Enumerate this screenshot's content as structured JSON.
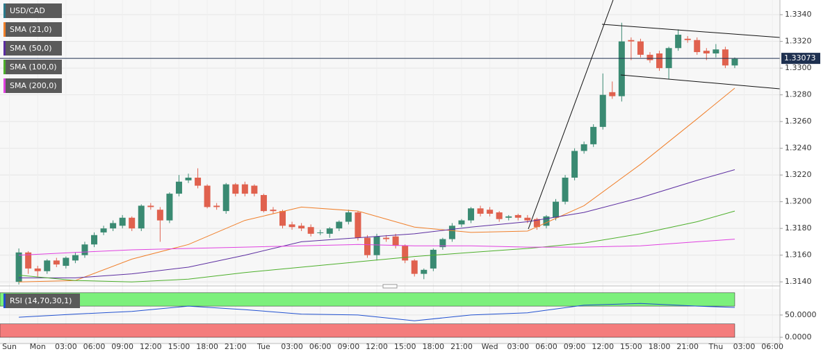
{
  "chart_data": [
    {
      "type": "candlestick",
      "symbol": "USD/CAD",
      "x": [
        -2,
        -1,
        0,
        1,
        2,
        3,
        4,
        5,
        6,
        7,
        8,
        9,
        10,
        11,
        12,
        13,
        14,
        15,
        16,
        17,
        18,
        19,
        20,
        21,
        22,
        23,
        24,
        25,
        26,
        27,
        28,
        29,
        30,
        31,
        32,
        33,
        34,
        35,
        36,
        37,
        38,
        39,
        40,
        41,
        42,
        43,
        44,
        45,
        46,
        47,
        48,
        49,
        50,
        51,
        52,
        53,
        54,
        55,
        56,
        57,
        58,
        59,
        60,
        61,
        62,
        63,
        64,
        65,
        66,
        67,
        68,
        69,
        70,
        71,
        72,
        73,
        74
      ],
      "open": [
        1.314,
        1.3162,
        1.315,
        1.3148,
        1.3156,
        1.3152,
        1.3156,
        1.316,
        1.3168,
        1.3177,
        1.318,
        1.3182,
        1.3188,
        1.318,
        1.3197,
        1.3194,
        1.3186,
        1.3206,
        1.3216,
        1.3218,
        1.3212,
        1.3197,
        1.3193,
        1.3213,
        1.3213,
        1.3212,
        1.3205,
        1.3194,
        1.3193,
        1.3183,
        1.3182,
        1.3181,
        1.3177,
        1.3176,
        1.318,
        1.3185,
        1.3192,
        1.3173,
        1.316,
        1.3173,
        1.3174,
        1.3167,
        1.3156,
        1.3146,
        1.315,
        1.3166,
        1.3172,
        1.3183,
        1.3186,
        1.3195,
        1.3194,
        1.3192,
        1.3188,
        1.319,
        1.3188,
        1.3187,
        1.3182,
        1.3188,
        1.32,
        1.3218,
        1.3238,
        1.3243,
        1.3256,
        1.3282,
        1.3279,
        1.3321,
        1.332,
        1.331,
        1.3311,
        1.33,
        1.3315,
        1.3322,
        1.3321,
        1.3313,
        1.3311,
        1.3314,
        1.3302
      ],
      "high": [
        1.3165,
        1.3163,
        1.3152,
        1.3157,
        1.3158,
        1.3159,
        1.3162,
        1.317,
        1.3177,
        1.3182,
        1.3186,
        1.319,
        1.3189,
        1.3198,
        1.3199,
        1.3196,
        1.3207,
        1.322,
        1.3221,
        1.3225,
        1.3213,
        1.3199,
        1.3214,
        1.3214,
        1.3215,
        1.3213,
        1.3206,
        1.3196,
        1.3194,
        1.3185,
        1.3184,
        1.3183,
        1.3179,
        1.3181,
        1.3186,
        1.3194,
        1.3193,
        1.3175,
        1.3176,
        1.3175,
        1.3176,
        1.3168,
        1.3157,
        1.315,
        1.3165,
        1.3173,
        1.3184,
        1.3187,
        1.3196,
        1.3197,
        1.3196,
        1.3193,
        1.319,
        1.3191,
        1.319,
        1.3188,
        1.319,
        1.3202,
        1.322,
        1.324,
        1.3245,
        1.3258,
        1.3296,
        1.329,
        1.3334,
        1.3323,
        1.3322,
        1.3312,
        1.3313,
        1.3316,
        1.3329,
        1.3324,
        1.3323,
        1.3315,
        1.3318,
        1.3316,
        1.3308
      ],
      "low": [
        1.3138,
        1.3146,
        1.3144,
        1.3146,
        1.3151,
        1.315,
        1.3154,
        1.3158,
        1.3166,
        1.3175,
        1.3178,
        1.318,
        1.3178,
        1.3178,
        1.3194,
        1.317,
        1.3184,
        1.3204,
        1.3214,
        1.321,
        1.3195,
        1.3194,
        1.3191,
        1.3204,
        1.3204,
        1.3204,
        1.3192,
        1.3191,
        1.318,
        1.3179,
        1.3178,
        1.3174,
        1.3175,
        1.3173,
        1.3178,
        1.3183,
        1.3171,
        1.3158,
        1.3156,
        1.317,
        1.3165,
        1.3154,
        1.3144,
        1.3142,
        1.3148,
        1.3164,
        1.317,
        1.3181,
        1.3184,
        1.3189,
        1.3189,
        1.3185,
        1.3186,
        1.3186,
        1.3184,
        1.3179,
        1.318,
        1.3186,
        1.3198,
        1.3216,
        1.3236,
        1.3241,
        1.3254,
        1.3277,
        1.3275,
        1.3306,
        1.3308,
        1.3304,
        1.3298,
        1.3292,
        1.3313,
        1.3319,
        1.331,
        1.3306,
        1.3308,
        1.33,
        1.33
      ],
      "close": [
        1.3162,
        1.315,
        1.3148,
        1.3156,
        1.3153,
        1.3158,
        1.316,
        1.3168,
        1.3175,
        1.318,
        1.3184,
        1.3188,
        1.318,
        1.3197,
        1.3196,
        1.3186,
        1.3206,
        1.3215,
        1.3218,
        1.3212,
        1.3196,
        1.3196,
        1.3213,
        1.3206,
        1.3206,
        1.3206,
        1.3193,
        1.3193,
        1.3182,
        1.3181,
        1.318,
        1.3176,
        1.3177,
        1.318,
        1.3185,
        1.3192,
        1.3173,
        1.316,
        1.3174,
        1.3172,
        1.3167,
        1.3156,
        1.3146,
        1.3149,
        1.3164,
        1.3172,
        1.3182,
        1.3186,
        1.3195,
        1.3191,
        1.3191,
        1.3187,
        1.3189,
        1.3188,
        1.3186,
        1.3181,
        1.3189,
        1.32,
        1.3218,
        1.3238,
        1.3243,
        1.3256,
        1.328,
        1.3279,
        1.332,
        1.332,
        1.331,
        1.3306,
        1.33,
        1.3315,
        1.3325,
        1.3321,
        1.3312,
        1.3311,
        1.3314,
        1.3302,
        1.3307
      ],
      "up_color": "#3a8a72",
      "down_color": "#e0614e",
      "series": [
        {
          "name": "SMA (21,0)",
          "color": "#f07f2a",
          "x": [
            -2,
            4,
            10,
            16,
            22,
            28,
            34,
            40,
            46,
            52,
            58,
            64,
            70,
            74
          ],
          "values": [
            1.314,
            1.3141,
            1.3157,
            1.3168,
            1.3186,
            1.3196,
            1.3193,
            1.3181,
            1.3177,
            1.3178,
            1.3197,
            1.3228,
            1.3262,
            1.3285
          ]
        },
        {
          "name": "SMA (50,0)",
          "color": "#5b2ca0",
          "x": [
            -2,
            4,
            10,
            16,
            22,
            28,
            34,
            40,
            46,
            52,
            58,
            64,
            70,
            74
          ],
          "values": [
            1.3143,
            1.3143,
            1.3146,
            1.3151,
            1.316,
            1.317,
            1.3173,
            1.3176,
            1.3181,
            1.3185,
            1.3192,
            1.3203,
            1.3216,
            1.3224
          ]
        },
        {
          "name": "SMA (100,0)",
          "color": "#4caf2a",
          "x": [
            -2,
            4,
            10,
            16,
            22,
            28,
            34,
            40,
            46,
            52,
            58,
            64,
            70,
            74
          ],
          "values": [
            1.3145,
            1.3141,
            1.314,
            1.3142,
            1.3147,
            1.3151,
            1.3155,
            1.3159,
            1.3162,
            1.3165,
            1.3169,
            1.3176,
            1.3185,
            1.3193
          ]
        },
        {
          "name": "SMA (200,0)",
          "color": "#e040e0",
          "x": [
            -2,
            4,
            10,
            16,
            22,
            28,
            34,
            40,
            46,
            52,
            58,
            64,
            70,
            74
          ],
          "values": [
            1.316,
            1.3162,
            1.3164,
            1.3165,
            1.3166,
            1.3167,
            1.3168,
            1.3167,
            1.3167,
            1.3166,
            1.3166,
            1.3167,
            1.317,
            1.3172
          ]
        }
      ],
      "last_price": 1.33073,
      "xlim": [
        -4,
        78.8
      ],
      "ylim": [
        1.3138,
        1.3351
      ],
      "yticks": [
        {
          "value": 1.314,
          "label": "1.3140"
        },
        {
          "value": 1.316,
          "label": "1.3160"
        },
        {
          "value": 1.318,
          "label": "1.3180"
        },
        {
          "value": 1.32,
          "label": "1.3200"
        },
        {
          "value": 1.322,
          "label": "1.3220"
        },
        {
          "value": 1.324,
          "label": "1.3240"
        },
        {
          "value": 1.326,
          "label": "1.3260"
        },
        {
          "value": 1.328,
          "label": "1.3280"
        },
        {
          "value": 1.33,
          "label": "1.3300"
        },
        {
          "value": 1.332,
          "label": "1.3320"
        },
        {
          "value": 1.334,
          "label": "1.3340"
        }
      ],
      "xticks": [
        {
          "value": -3,
          "label": "Sun"
        },
        {
          "value": 0,
          "label": "Mon"
        },
        {
          "value": 3,
          "label": "03:00"
        },
        {
          "value": 6,
          "label": "06:00"
        },
        {
          "value": 9,
          "label": "09:00"
        },
        {
          "value": 12,
          "label": "12:00"
        },
        {
          "value": 15,
          "label": "15:00"
        },
        {
          "value": 18,
          "label": "18:00"
        },
        {
          "value": 21,
          "label": "21:00"
        },
        {
          "value": 24,
          "label": "Tue"
        },
        {
          "value": 27,
          "label": "03:00"
        },
        {
          "value": 30,
          "label": "06:00"
        },
        {
          "value": 33,
          "label": "09:00"
        },
        {
          "value": 36,
          "label": "12:00"
        },
        {
          "value": 39,
          "label": "15:00"
        },
        {
          "value": 42,
          "label": "18:00"
        },
        {
          "value": 45,
          "label": "21:00"
        },
        {
          "value": 48,
          "label": "Wed"
        },
        {
          "value": 51,
          "label": "03:00"
        },
        {
          "value": 54,
          "label": "06:00"
        },
        {
          "value": 57,
          "label": "09:00"
        },
        {
          "value": 60,
          "label": "12:00"
        },
        {
          "value": 63,
          "label": "15:00"
        },
        {
          "value": 66,
          "label": "18:00"
        },
        {
          "value": 69,
          "label": "21:00"
        },
        {
          "value": 72,
          "label": "Thu"
        },
        {
          "value": 75,
          "label": "03:00"
        },
        {
          "value": 78,
          "label": "06:00"
        }
      ],
      "grid": true
    },
    {
      "type": "line",
      "name": "RSI (14,70,30,1)",
      "color": "#2050d0",
      "x": [
        -2,
        4,
        10,
        16,
        22,
        28,
        34,
        40,
        46,
        52,
        58,
        64,
        70,
        74
      ],
      "values": [
        45,
        52,
        58,
        70,
        62,
        52,
        50,
        37,
        50,
        55,
        72,
        76,
        70,
        67
      ],
      "overbought_zone": [
        70,
        100
      ],
      "overbought_color": "#7cf07c",
      "oversold_zone": [
        0,
        30
      ],
      "oversold_color": "#f47c7c",
      "xlim": [
        -4,
        78.8
      ],
      "ylim": [
        -14,
        106
      ],
      "yticks": [
        {
          "value": 50,
          "label": "50.0000"
        },
        {
          "value": 0,
          "label": "0.0000"
        }
      ]
    }
  ]
}
